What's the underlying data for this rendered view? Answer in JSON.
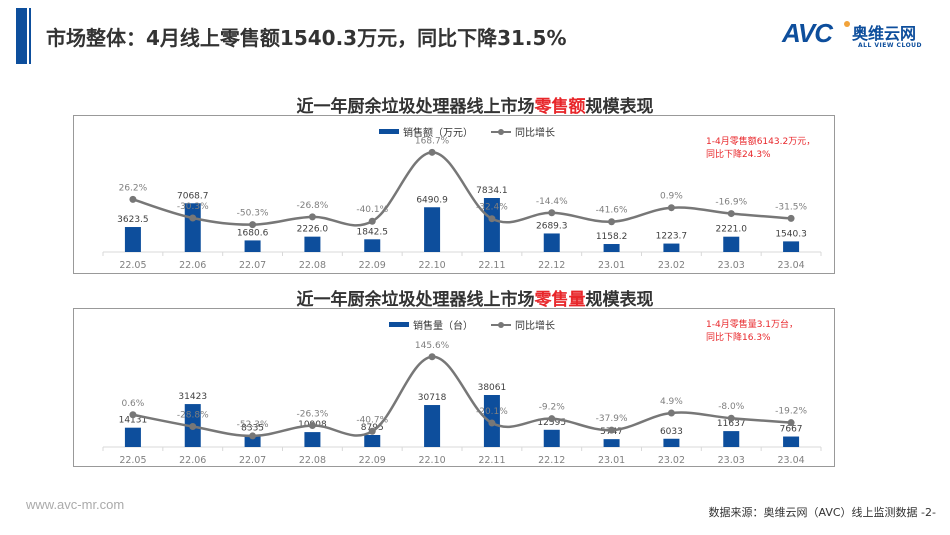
{
  "header": {
    "title": "市场整体：4月线上零售额1540.3万元，同比下降31.5%",
    "logo_mark": "AVC",
    "logo_cn": "奥维云网",
    "logo_en": "ALL VIEW CLOUD",
    "brand_color": "#0d4e9c"
  },
  "charts": [
    {
      "title_prefix": "近一年厨余垃圾处理器线上市场",
      "title_highlight": "零售额",
      "title_suffix": "规模表现",
      "legend_bar": "销售额（万元）",
      "legend_line": "同比增长",
      "note_line1": "1-4月零售额6143.2万元，",
      "note_line2": "同比下降24.3%"
    },
    {
      "title_prefix": "近一年厨余垃圾处理器线上市场",
      "title_highlight": "零售量",
      "title_suffix": "规模表现",
      "legend_bar": "销售量（台）",
      "legend_line": "同比增长",
      "note_line1": "1-4月零售量3.1万台，",
      "note_line2": "同比下降16.3%"
    }
  ],
  "chart_data": [
    {
      "type": "bar",
      "title": "近一年厨余垃圾处理器线上市场零售额规模表现",
      "categories": [
        "22.05",
        "22.06",
        "22.07",
        "22.08",
        "22.09",
        "22.10",
        "22.11",
        "22.12",
        "23.01",
        "23.02",
        "23.03",
        "23.04"
      ],
      "series": [
        {
          "name": "销售额（万元）",
          "type": "bar",
          "color": "#0d4e9c",
          "values": [
            3623.5,
            7068.7,
            1680.6,
            2226.0,
            1842.5,
            6490.9,
            7834.1,
            2689.3,
            1158.2,
            1223.7,
            2221.0,
            1540.3
          ],
          "labels": [
            "3623.5",
            "7068.7",
            "1680.6",
            "2226.0",
            "1842.5",
            "6490.9",
            "7834.1",
            "2689.3",
            "1158.2",
            "1223.7",
            "2221.0",
            "1540.3"
          ]
        },
        {
          "name": "同比增长",
          "type": "line",
          "color": "#777777",
          "values": [
            26.2,
            -30.3,
            -50.3,
            -26.8,
            -40.1,
            168.7,
            -32.4,
            -14.4,
            -41.6,
            0.9,
            -16.9,
            -31.5
          ],
          "labels": [
            "26.2%",
            "-30.3%",
            "-50.3%",
            "-26.8%",
            "-40.1%",
            "168.7%",
            "-32.4%",
            "-14.4%",
            "-41.6%",
            "0.9%",
            "-16.9%",
            "-31.5%"
          ]
        }
      ],
      "annotation": "1-4月零售额6143.2万元，同比下降24.3%",
      "legend_position": "top",
      "grid": false
    },
    {
      "type": "bar",
      "title": "近一年厨余垃圾处理器线上市场零售量规模表现",
      "categories": [
        "22.05",
        "22.06",
        "22.07",
        "22.08",
        "22.09",
        "22.10",
        "22.11",
        "22.12",
        "23.01",
        "23.02",
        "23.03",
        "23.04"
      ],
      "series": [
        {
          "name": "销售量（台）",
          "type": "bar",
          "color": "#0d4e9c",
          "values": [
            14131,
            31423,
            8335,
            10908,
            8795,
            30718,
            38061,
            12595,
            5747,
            6033,
            11637,
            7667
          ],
          "labels": [
            "14131",
            "31423",
            "8335",
            "10908",
            "8795",
            "30718",
            "38061",
            "12595",
            "5747",
            "6033",
            "11637",
            "7667"
          ]
        },
        {
          "name": "同比增长",
          "type": "line",
          "color": "#777777",
          "values": [
            0.6,
            -28.8,
            -52.3,
            -26.3,
            -40.7,
            145.6,
            -20.1,
            -9.2,
            -37.9,
            4.9,
            -8.0,
            -19.2
          ],
          "labels": [
            "0.6%",
            "-28.8%",
            "-52.3%",
            "-26.3%",
            "-40.7%",
            "145.6%",
            "-20.1%",
            "-9.2%",
            "-37.9%",
            "4.9%",
            "-8.0%",
            "-19.2%"
          ]
        }
      ],
      "annotation": "1-4月零售量3.1万台，同比下降16.3%",
      "legend_position": "top",
      "grid": false
    }
  ],
  "footer": {
    "url": "www.avc-mr.com",
    "source": "数据来源：奥维云网（AVC）线上监测数据 -2-"
  }
}
